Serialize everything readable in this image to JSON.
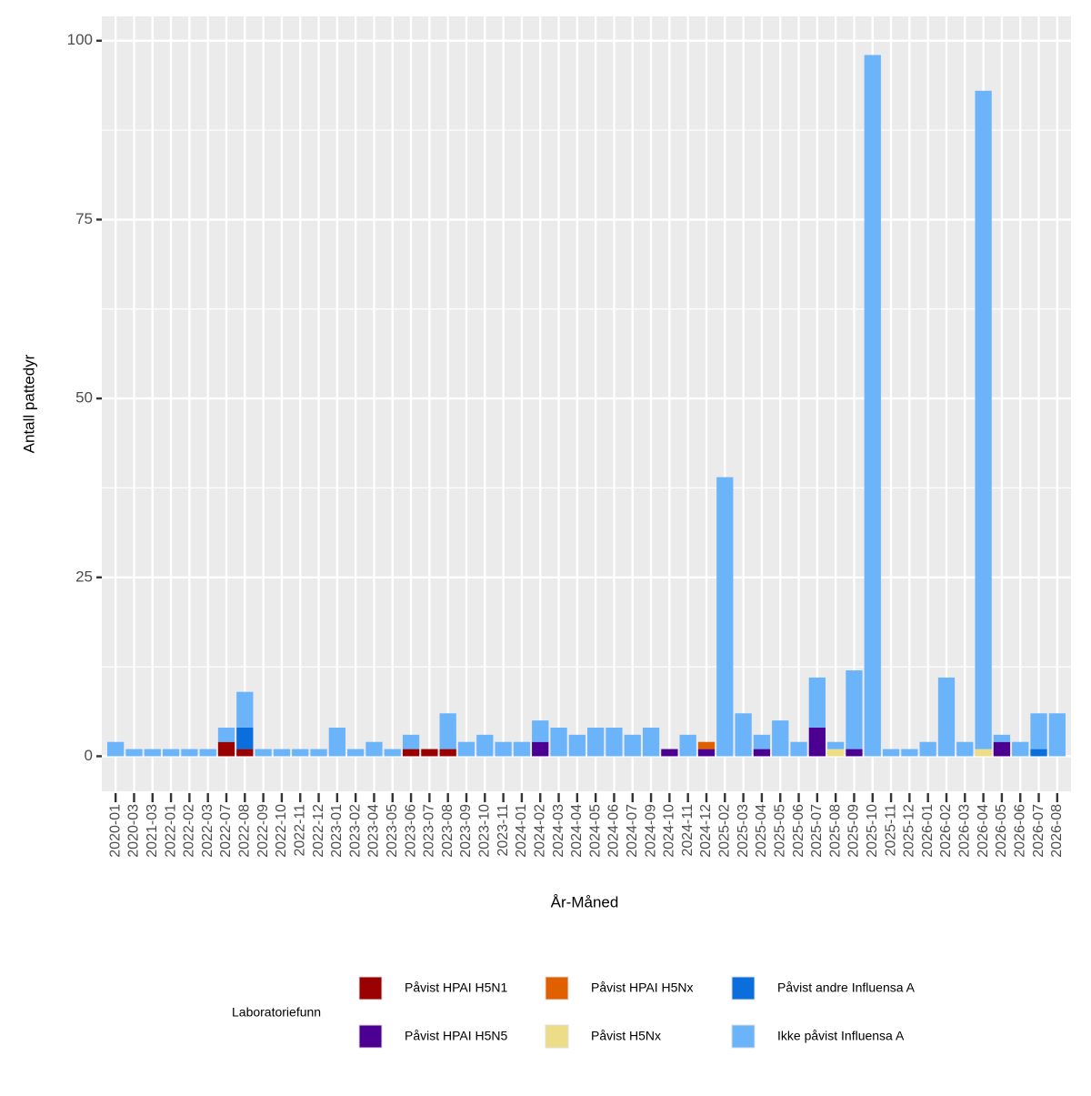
{
  "chart_data": {
    "type": "stacked_bar",
    "x_label": "År-Måned",
    "y_label": "Antall pattedyr",
    "legend_title": "Laboratoriefunn",
    "categories": [
      "2020-01",
      "2020-03",
      "2021-03",
      "2022-01",
      "2022-02",
      "2022-03",
      "2022-07",
      "2022-08",
      "2022-09",
      "2022-10",
      "2022-11",
      "2022-12",
      "2023-01",
      "2023-02",
      "2023-04",
      "2023-05",
      "2023-06",
      "2023-07",
      "2023-08",
      "2023-09",
      "2023-10",
      "2023-11",
      "2024-01",
      "2024-02",
      "2024-03",
      "2024-04",
      "2024-05",
      "2024-06",
      "2024-07",
      "2024-09",
      "2024-10",
      "2024-11",
      "2024-12",
      "2025-02",
      "2025-03",
      "2025-04",
      "2025-05",
      "2025-06",
      "2025-07",
      "2025-08",
      "2025-09",
      "2025-10",
      "2025-11",
      "2025-12",
      "2026-01",
      "2026-02",
      "2026-03",
      "2026-04",
      "2026-05",
      "2026-06",
      "2026-07",
      "2026-08"
    ],
    "series": [
      {
        "name": "Påvist HPAI H5N1",
        "color": "#990000",
        "values": [
          0,
          0,
          0,
          0,
          0,
          0,
          2,
          1,
          0,
          0,
          0,
          0,
          0,
          0,
          0,
          0,
          1,
          1,
          1,
          0,
          0,
          0,
          0,
          0,
          0,
          0,
          0,
          0,
          0,
          0,
          0,
          0,
          0,
          0,
          0,
          0,
          0,
          0,
          0,
          0,
          0,
          0,
          0,
          0,
          0,
          0,
          0,
          0,
          0,
          0,
          0,
          0
        ]
      },
      {
        "name": "Påvist HPAI H5N5",
        "color": "#4b0092",
        "values": [
          0,
          0,
          0,
          0,
          0,
          0,
          0,
          0,
          0,
          0,
          0,
          0,
          0,
          0,
          0,
          0,
          0,
          0,
          0,
          0,
          0,
          0,
          0,
          2,
          0,
          0,
          0,
          0,
          0,
          0,
          1,
          0,
          1,
          0,
          0,
          1,
          0,
          0,
          4,
          0,
          1,
          0,
          0,
          0,
          0,
          0,
          0,
          0,
          2,
          0,
          0,
          0
        ]
      },
      {
        "name": "Påvist HPAI H5Nx",
        "color": "#e06000",
        "values": [
          0,
          0,
          0,
          0,
          0,
          0,
          0,
          0,
          0,
          0,
          0,
          0,
          0,
          0,
          0,
          0,
          0,
          0,
          0,
          0,
          0,
          0,
          0,
          0,
          0,
          0,
          0,
          0,
          0,
          0,
          0,
          0,
          1,
          0,
          0,
          0,
          0,
          0,
          0,
          0,
          0,
          0,
          0,
          0,
          0,
          0,
          0,
          0,
          0,
          0,
          0,
          0
        ]
      },
      {
        "name": "Påvist H5Nx",
        "color": "#eedd88",
        "values": [
          0,
          0,
          0,
          0,
          0,
          0,
          0,
          0,
          0,
          0,
          0,
          0,
          0,
          0,
          0,
          0,
          0,
          0,
          0,
          0,
          0,
          0,
          0,
          0,
          0,
          0,
          0,
          0,
          0,
          0,
          0,
          0,
          0,
          0,
          0,
          0,
          0,
          0,
          0,
          1,
          0,
          0,
          0,
          0,
          0,
          0,
          0,
          1,
          0,
          0,
          0,
          0
        ]
      },
      {
        "name": "Påvist andre Influensa A",
        "color": "#0a6edc",
        "values": [
          0,
          0,
          0,
          0,
          0,
          0,
          0,
          3,
          0,
          0,
          0,
          0,
          0,
          0,
          0,
          0,
          0,
          0,
          0,
          0,
          0,
          0,
          0,
          0,
          0,
          0,
          0,
          0,
          0,
          0,
          0,
          0,
          0,
          0,
          0,
          0,
          0,
          0,
          0,
          0,
          0,
          0,
          0,
          0,
          0,
          0,
          0,
          0,
          0,
          0,
          1,
          0
        ]
      },
      {
        "name": "Ikke påvist Influensa A",
        "color": "#6cb4fa",
        "values": [
          2,
          1,
          1,
          1,
          1,
          1,
          2,
          5,
          1,
          1,
          1,
          1,
          4,
          1,
          2,
          1,
          2,
          0,
          5,
          2,
          3,
          2,
          2,
          3,
          4,
          3,
          4,
          4,
          3,
          4,
          0,
          3,
          0,
          39,
          6,
          2,
          5,
          2,
          7,
          1,
          11,
          98,
          1,
          1,
          2,
          11,
          2,
          92,
          1,
          2,
          5,
          6
        ]
      }
    ],
    "ylim": [
      -4.9,
      103.4
    ],
    "yticks": [
      0,
      25,
      50,
      75,
      100
    ],
    "grid": true
  }
}
